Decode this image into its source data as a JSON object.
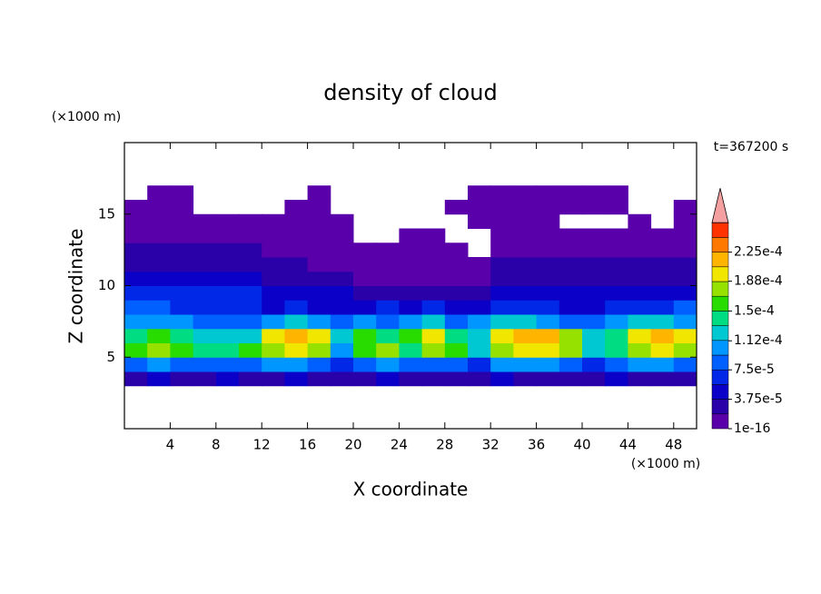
{
  "chart_data": {
    "type": "contour",
    "title": "density of cloud",
    "xlabel": "X coordinate",
    "ylabel": "Z coordinate",
    "x_unit": "(×1000 m)",
    "y_unit": "(×1000 m)",
    "annotation": "t=367200 s",
    "xlim": [
      0,
      50
    ],
    "ylim": [
      0,
      20
    ],
    "xticks": [
      4,
      8,
      12,
      16,
      20,
      24,
      28,
      32,
      36,
      40,
      44,
      48
    ],
    "yticks": [
      5,
      10,
      15
    ],
    "x": [
      1,
      3,
      5,
      7,
      9,
      11,
      13,
      15,
      17,
      19,
      21,
      23,
      25,
      27,
      29,
      31,
      33,
      35,
      37,
      39,
      41,
      43,
      45,
      47,
      49
    ],
    "y": [
      3.5,
      4.5,
      5.5,
      6.5,
      7.5,
      8.5,
      9.5,
      10.5,
      11.5,
      12.5,
      13.5,
      14.5,
      15.5,
      16.5
    ],
    "values": [
      [
        2.8e-05,
        4.7e-05,
        2.8e-05,
        2.8e-05,
        4.7e-05,
        2.8e-05,
        2.8e-05,
        4.7e-05,
        2.8e-05,
        2.8e-05,
        2.8e-05,
        4.7e-05,
        2.8e-05,
        2.8e-05,
        2.8e-05,
        2.8e-05,
        4.7e-05,
        2.8e-05,
        2.8e-05,
        2.8e-05,
        2.8e-05,
        4.7e-05,
        2.8e-05,
        2.8e-05,
        2.8e-05
      ],
      [
        8.4e-05,
        0.000103,
        8.4e-05,
        8.4e-05,
        8.4e-05,
        8.4e-05,
        0.000103,
        0.000103,
        8.4e-05,
        6.6e-05,
        8.4e-05,
        0.000103,
        8.4e-05,
        8.4e-05,
        8.4e-05,
        6.6e-05,
        0.000103,
        0.000103,
        0.000103,
        8.4e-05,
        6.6e-05,
        8.4e-05,
        0.000103,
        0.000103,
        8.4e-05
      ],
      [
        0.000159,
        0.000178,
        0.000159,
        0.000141,
        0.000141,
        0.000159,
        0.000178,
        0.000197,
        0.000178,
        0.000103,
        0.000159,
        0.000178,
        0.000141,
        0.000178,
        0.000159,
        0.000122,
        0.000178,
        0.000197,
        0.000197,
        0.000178,
        0.000122,
        0.000141,
        0.000178,
        0.000197,
        0.000178
      ],
      [
        0.000141,
        0.000159,
        0.000141,
        0.000122,
        0.000122,
        0.000122,
        0.000197,
        0.000216,
        0.000197,
        0.000122,
        0.000159,
        0.000141,
        0.000159,
        0.000197,
        0.000141,
        0.000122,
        0.000197,
        0.000216,
        0.000216,
        0.000178,
        0.000122,
        0.000141,
        0.000197,
        0.000216,
        0.000197
      ],
      [
        0.000103,
        0.000103,
        0.000103,
        8.4e-05,
        8.4e-05,
        8.4e-05,
        0.000103,
        0.000122,
        0.000103,
        8.4e-05,
        0.000103,
        8.4e-05,
        0.000103,
        0.000122,
        8.4e-05,
        0.000103,
        0.000122,
        0.000122,
        0.000103,
        8.4e-05,
        8.4e-05,
        0.000103,
        0.000122,
        0.000122,
        0.000103
      ],
      [
        8.4e-05,
        8.4e-05,
        6.6e-05,
        6.6e-05,
        6.6e-05,
        6.6e-05,
        4.7e-05,
        6.6e-05,
        4.7e-05,
        4.7e-05,
        4.7e-05,
        6.6e-05,
        4.7e-05,
        6.6e-05,
        4.7e-05,
        4.7e-05,
        6.6e-05,
        6.6e-05,
        6.6e-05,
        4.7e-05,
        4.7e-05,
        6.6e-05,
        6.6e-05,
        6.6e-05,
        8.4e-05
      ],
      [
        6.6e-05,
        6.6e-05,
        6.6e-05,
        6.6e-05,
        6.6e-05,
        6.6e-05,
        4.7e-05,
        4.7e-05,
        4.7e-05,
        4.7e-05,
        2.8e-05,
        2.8e-05,
        2.8e-05,
        2.8e-05,
        2.8e-05,
        2.8e-05,
        4.7e-05,
        4.7e-05,
        4.7e-05,
        4.7e-05,
        4.7e-05,
        4.7e-05,
        4.7e-05,
        4.7e-05,
        4.7e-05
      ],
      [
        4.7e-05,
        4.7e-05,
        4.7e-05,
        4.7e-05,
        4.7e-05,
        4.7e-05,
        2.8e-05,
        2.8e-05,
        2.8e-05,
        2.8e-05,
        9e-06,
        9e-06,
        9e-06,
        9e-06,
        9e-06,
        9e-06,
        2.8e-05,
        2.8e-05,
        2.8e-05,
        2.8e-05,
        2.8e-05,
        2.8e-05,
        2.8e-05,
        2.8e-05,
        2.8e-05
      ],
      [
        2.8e-05,
        2.8e-05,
        2.8e-05,
        2.8e-05,
        2.8e-05,
        2.8e-05,
        2.8e-05,
        2.8e-05,
        9e-06,
        9e-06,
        9e-06,
        9e-06,
        9e-06,
        9e-06,
        9e-06,
        9e-06,
        2.8e-05,
        2.8e-05,
        2.8e-05,
        2.8e-05,
        2.8e-05,
        2.8e-05,
        2.8e-05,
        2.8e-05,
        2.8e-05
      ],
      [
        2.8e-05,
        2.8e-05,
        2.8e-05,
        2.8e-05,
        2.8e-05,
        2.8e-05,
        9e-06,
        9e-06,
        9e-06,
        9e-06,
        9e-06,
        9e-06,
        9e-06,
        9e-06,
        9e-06,
        null,
        9e-06,
        9e-06,
        9e-06,
        9e-06,
        9e-06,
        9e-06,
        9e-06,
        9e-06,
        9e-06
      ],
      [
        9e-06,
        9e-06,
        9e-06,
        9e-06,
        9e-06,
        9e-06,
        9e-06,
        9e-06,
        9e-06,
        9e-06,
        null,
        null,
        9e-06,
        9e-06,
        null,
        null,
        9e-06,
        9e-06,
        9e-06,
        9e-06,
        9e-06,
        9e-06,
        9e-06,
        9e-06,
        9e-06
      ],
      [
        9e-06,
        9e-06,
        9e-06,
        9e-06,
        9e-06,
        9e-06,
        9e-06,
        9e-06,
        9e-06,
        9e-06,
        null,
        null,
        null,
        null,
        null,
        9e-06,
        9e-06,
        9e-06,
        9e-06,
        null,
        null,
        null,
        9e-06,
        null,
        9e-06
      ],
      [
        9e-06,
        9e-06,
        9e-06,
        null,
        null,
        null,
        null,
        9e-06,
        9e-06,
        null,
        null,
        null,
        null,
        null,
        9e-06,
        9e-06,
        9e-06,
        9e-06,
        9e-06,
        9e-06,
        9e-06,
        9e-06,
        null,
        null,
        9e-06
      ],
      [
        null,
        9e-06,
        9e-06,
        null,
        null,
        null,
        null,
        null,
        9e-06,
        null,
        null,
        null,
        null,
        null,
        null,
        9e-06,
        9e-06,
        9e-06,
        9e-06,
        9e-06,
        9e-06,
        9e-06,
        null,
        null,
        null
      ]
    ],
    "colors": [
      "#5a00aa",
      "#2a00a8",
      "#0a00c8",
      "#0028e6",
      "#0060ff",
      "#0096ff",
      "#00c8d2",
      "#00dc82",
      "#28dc00",
      "#96e100",
      "#f0e600",
      "#ffb400",
      "#ff7800",
      "#ff3200"
    ],
    "clim": [
      0,
      0.0002625
    ],
    "extend_color": "#f5a0a0",
    "colorbar_ticks": [
      {
        "value": 1e-16,
        "label": "1e-16"
      },
      {
        "value": 3.75e-05,
        "label": "3.75e-5"
      },
      {
        "value": 7.5e-05,
        "label": "7.5e-5"
      },
      {
        "value": 0.000112,
        "label": "1.12e-4"
      },
      {
        "value": 0.00015,
        "label": "1.5e-4"
      },
      {
        "value": 0.000188,
        "label": "1.88e-4"
      },
      {
        "value": 0.000225,
        "label": "2.25e-4"
      }
    ]
  }
}
